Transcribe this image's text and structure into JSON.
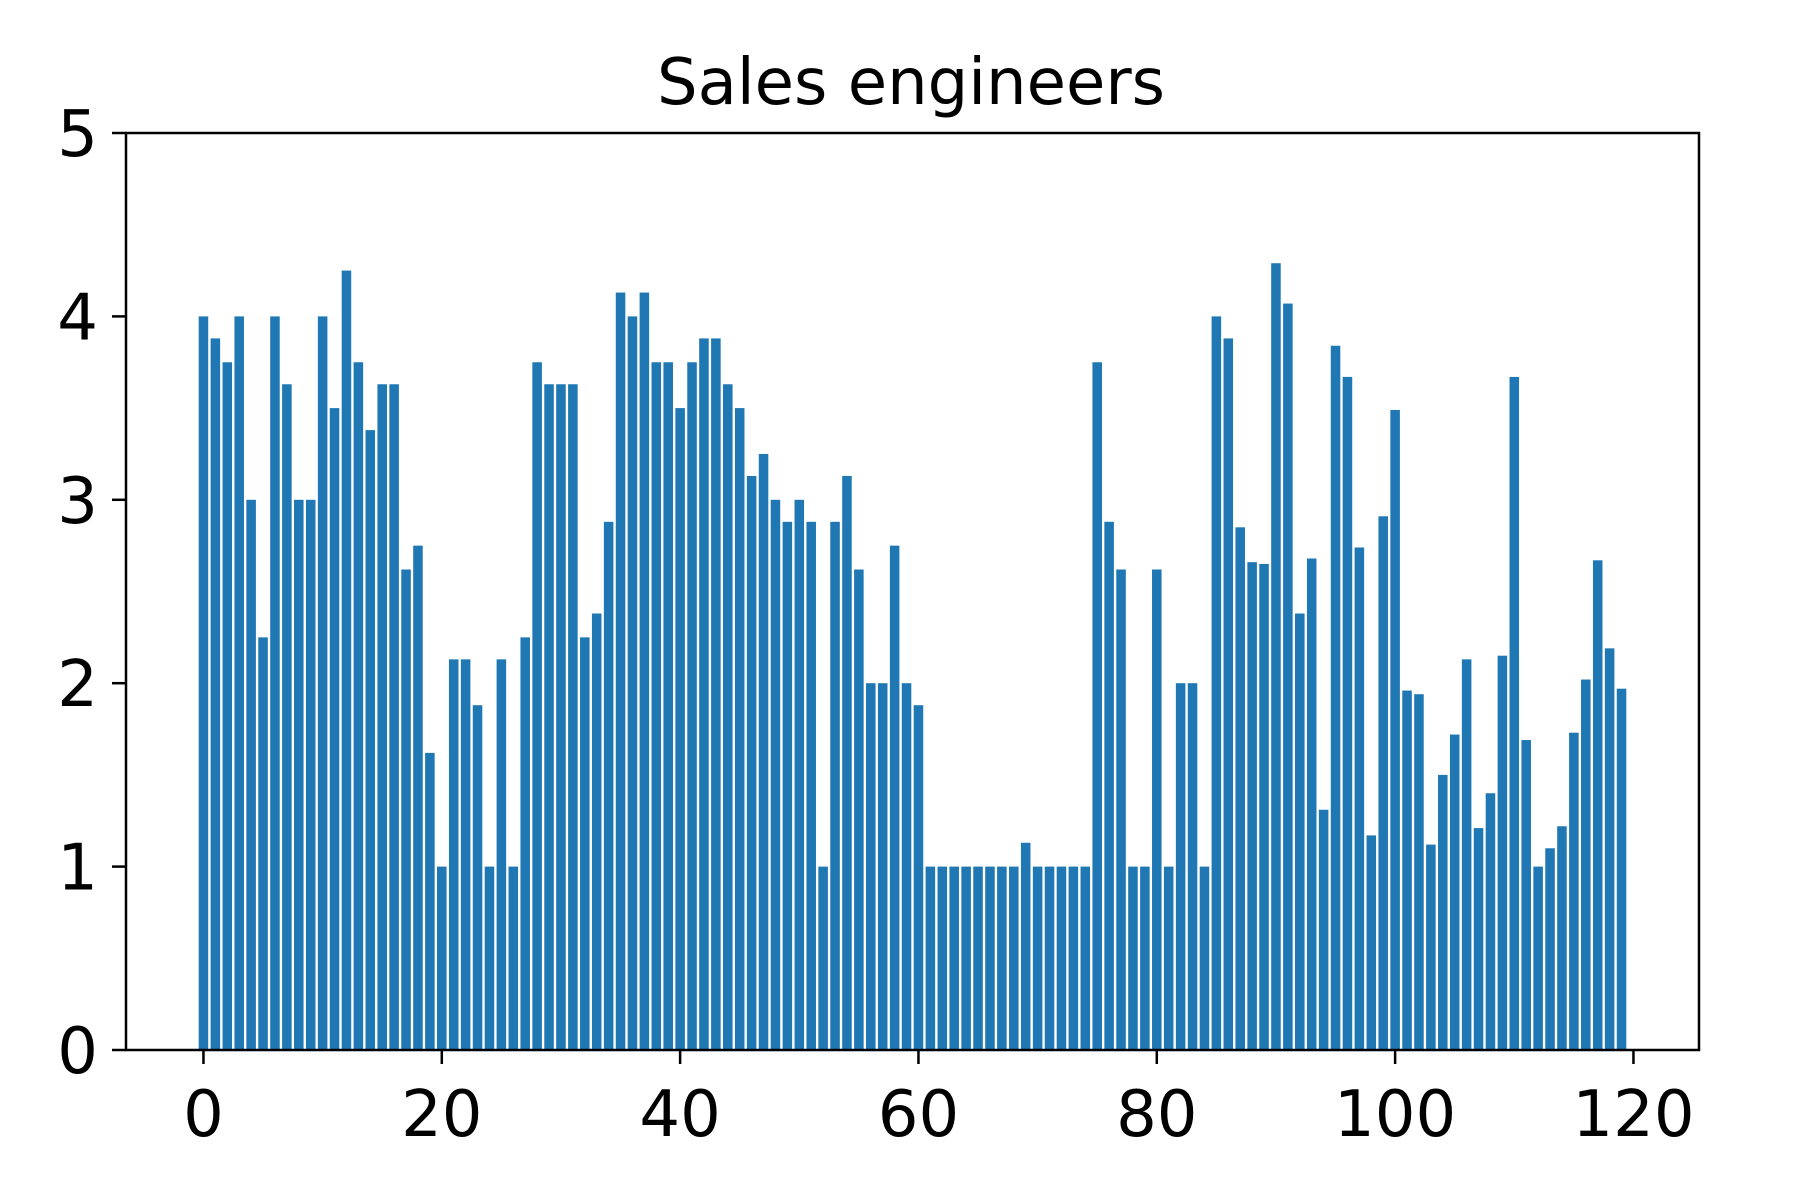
{
  "chart_data": {
    "type": "bar",
    "title": "Sales engineers",
    "xlabel": "",
    "ylabel": "",
    "xlim": [
      -6.5,
      125.5
    ],
    "ylim": [
      0,
      5
    ],
    "xticks": [
      0,
      20,
      40,
      60,
      80,
      100,
      120
    ],
    "yticks": [
      0,
      1,
      2,
      3,
      4,
      5
    ],
    "grid": false,
    "legend": "none",
    "bar_color": "#1f77b4",
    "x": [
      0,
      1,
      2,
      3,
      4,
      5,
      6,
      7,
      8,
      9,
      10,
      11,
      12,
      13,
      14,
      15,
      16,
      17,
      18,
      19,
      20,
      21,
      22,
      23,
      24,
      25,
      26,
      27,
      28,
      29,
      30,
      31,
      32,
      33,
      34,
      35,
      36,
      37,
      38,
      39,
      40,
      41,
      42,
      43,
      44,
      45,
      46,
      47,
      48,
      49,
      50,
      51,
      52,
      53,
      54,
      55,
      56,
      57,
      58,
      59,
      60,
      61,
      62,
      63,
      64,
      65,
      66,
      67,
      68,
      69,
      70,
      71,
      72,
      73,
      74,
      75,
      76,
      77,
      78,
      79,
      80,
      81,
      82,
      83,
      84,
      85,
      86,
      87,
      88,
      89,
      90,
      91,
      92,
      93,
      94,
      95,
      96,
      97,
      98,
      99,
      100,
      101,
      102,
      103,
      104,
      105,
      106,
      107,
      108,
      109,
      110,
      111,
      112,
      113,
      114,
      115,
      116,
      117,
      118,
      119
    ],
    "values": [
      4.0,
      3.88,
      3.75,
      4.0,
      3.0,
      2.25,
      4.0,
      3.63,
      3.0,
      3.0,
      4.0,
      3.5,
      4.25,
      3.75,
      3.38,
      3.63,
      3.63,
      2.62,
      2.75,
      1.62,
      1.0,
      2.13,
      2.13,
      1.88,
      1.0,
      2.13,
      1.0,
      2.25,
      3.75,
      3.63,
      3.63,
      3.63,
      2.25,
      2.38,
      2.88,
      4.13,
      4.0,
      4.13,
      3.75,
      3.75,
      3.5,
      3.75,
      3.88,
      3.88,
      3.63,
      3.5,
      3.13,
      3.25,
      3.0,
      2.88,
      3.0,
      2.88,
      1.0,
      2.88,
      3.13,
      2.62,
      2.0,
      2.0,
      2.75,
      2.0,
      1.88,
      1.0,
      1.0,
      1.0,
      1.0,
      1.0,
      1.0,
      1.0,
      1.0,
      1.13,
      1.0,
      1.0,
      1.0,
      1.0,
      1.0,
      3.75,
      2.88,
      2.62,
      1.0,
      1.0,
      2.62,
      1.0,
      2.0,
      2.0,
      1.0,
      4.0,
      3.88,
      2.85,
      2.66,
      2.65,
      4.29,
      4.07,
      2.38,
      2.68,
      1.31,
      3.84,
      3.67,
      2.74,
      1.17,
      2.91,
      3.49,
      1.96,
      1.94,
      1.12,
      1.5,
      1.72,
      2.13,
      1.21,
      1.4,
      2.15,
      3.67,
      1.69,
      1.0,
      1.1,
      1.22,
      1.73,
      2.02,
      2.67,
      2.19,
      1.97
    ]
  }
}
